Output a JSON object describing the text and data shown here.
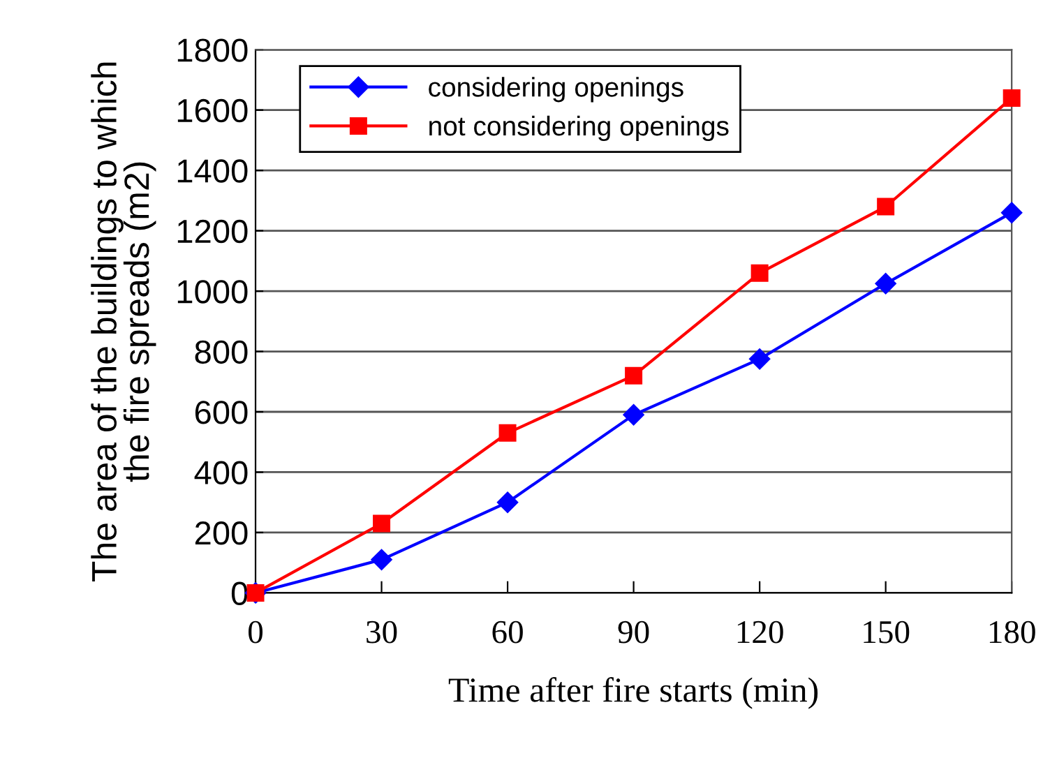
{
  "chart_data": {
    "type": "line",
    "xlabel": "Time after fire starts (min)",
    "ylabel": "The area of the buildings to which\nthe fire spreads (m2)",
    "x": [
      0,
      30,
      60,
      90,
      120,
      150,
      180
    ],
    "series": [
      {
        "name": "considering openings",
        "color": "#0000ff",
        "marker": "diamond",
        "values": [
          0,
          110,
          300,
          590,
          775,
          1025,
          1260
        ]
      },
      {
        "name": "not considering openings",
        "color": "#ff0000",
        "marker": "square",
        "values": [
          0,
          230,
          530,
          720,
          1060,
          1280,
          1640
        ]
      }
    ],
    "xlim": [
      0,
      180
    ],
    "xticks": [
      0,
      30,
      60,
      90,
      120,
      150,
      180
    ],
    "ylim": [
      0,
      1800
    ],
    "yticks": [
      0,
      200,
      400,
      600,
      800,
      1000,
      1200,
      1400,
      1600,
      1800
    ],
    "grid": "y",
    "legend": "top",
    "line_style": "solid"
  }
}
